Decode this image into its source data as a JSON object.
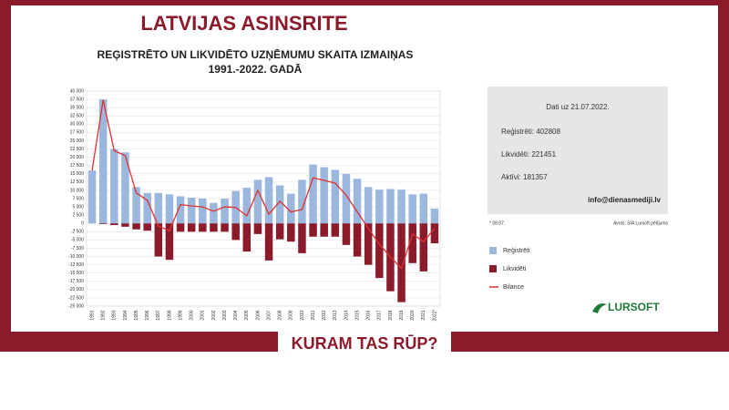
{
  "header": {
    "title": "LATVIJAS ASINSRITE",
    "tagline": "KURAM TAS RŪP?"
  },
  "chart_data": {
    "type": "bar",
    "title": "REĢISTRĒTO UN LIKVIDĒTO UZŅĒMUMU SKAITA IZMAIŅAS",
    "subtitle": "1991.-2022. GADĀ",
    "categories": [
      "1991",
      "1992",
      "1993",
      "1994",
      "1995",
      "1996",
      "1997",
      "1998",
      "1999",
      "2000",
      "2001",
      "2002",
      "2003",
      "2004",
      "2005",
      "2006",
      "2007",
      "2008",
      "2009",
      "2010",
      "2011",
      "2012",
      "2013",
      "2014",
      "2015",
      "2016",
      "2017",
      "2018",
      "2019",
      "2020",
      "2021",
      "2022*"
    ],
    "series": [
      {
        "name": "Reģistrēti",
        "type": "bar",
        "color": "#9bb7dd",
        "values": [
          16000,
          37500,
          22500,
          21500,
          11000,
          9200,
          9200,
          8800,
          8200,
          7800,
          7500,
          6200,
          7500,
          9800,
          10800,
          13200,
          14000,
          11500,
          9000,
          13200,
          17800,
          17000,
          16200,
          15000,
          13500,
          11000,
          10200,
          10400,
          10200,
          8800,
          9000,
          4500
        ]
      },
      {
        "name": "Likvidēti",
        "type": "bar",
        "color": "#8b1a2b",
        "values": [
          0,
          -200,
          -500,
          -1000,
          -1800,
          -2200,
          -10000,
          -11000,
          -2500,
          -2500,
          -2500,
          -2500,
          -2500,
          -5000,
          -8500,
          -3200,
          -11200,
          -4800,
          -5500,
          -9000,
          -4000,
          -4000,
          -4000,
          -6500,
          -10000,
          -12500,
          -16500,
          -20500,
          -23800,
          -12000,
          -14500,
          -6000
        ]
      },
      {
        "name": "Bilance",
        "type": "line",
        "color": "#e0312f",
        "values": [
          16000,
          37300,
          22000,
          20500,
          9200,
          7000,
          -800,
          -2200,
          5700,
          5300,
          5000,
          3700,
          5000,
          4800,
          2300,
          10000,
          2800,
          6700,
          3500,
          4200,
          13800,
          13000,
          12200,
          8500,
          3500,
          -1500,
          -6300,
          -10100,
          -13600,
          -3200,
          -5500,
          -1500
        ]
      }
    ],
    "ylim": [
      -25000,
      40000
    ],
    "yticks": [
      {
        "value": 40000,
        "label": "40 000"
      },
      {
        "value": 37500,
        "label": "37 500"
      },
      {
        "value": 35000,
        "label": "35 000"
      },
      {
        "value": 32500,
        "label": "32 500"
      },
      {
        "value": 30000,
        "label": "30 000"
      },
      {
        "value": 27500,
        "label": "27 500"
      },
      {
        "value": 25000,
        "label": "25 000"
      },
      {
        "value": 22500,
        "label": "22 500"
      },
      {
        "value": 20000,
        "label": "20 000"
      },
      {
        "value": 17500,
        "label": "17 500"
      },
      {
        "value": 15000,
        "label": "15 000"
      },
      {
        "value": 12500,
        "label": "12 500"
      },
      {
        "value": 10000,
        "label": "10 000"
      },
      {
        "value": 7500,
        "label": "7 500"
      },
      {
        "value": 5000,
        "label": "5 000"
      },
      {
        "value": 2500,
        "label": "2 500"
      },
      0,
      {
        "value": -2500,
        "label": "-2 500"
      },
      {
        "value": -5000,
        "label": "-5 000"
      },
      {
        "value": -7500,
        "label": "-7 500"
      },
      {
        "value": -10000,
        "label": "-10 000"
      },
      {
        "value": -12500,
        "label": "-12 500"
      },
      {
        "value": -15000,
        "label": "-15 000"
      },
      {
        "value": -17500,
        "label": "-17 500"
      },
      {
        "value": -20000,
        "label": "-20 000"
      },
      {
        "value": -22500,
        "label": "-22 500"
      },
      {
        "value": -25000,
        "label": "-25 000"
      }
    ],
    "grid": true
  },
  "info": {
    "date": "Dati uz 21.07.2022.",
    "registered": "Reģistrēti: 402808",
    "liquidated": "Likvidēti: 221451",
    "active": "Aktīvi: 181357",
    "email": "info@dienasmediji.lv"
  },
  "footnotes": {
    "note": "* 08.07.",
    "source": "Avots: SIA Lursoft pētījums"
  },
  "logo": "LURSOFT"
}
